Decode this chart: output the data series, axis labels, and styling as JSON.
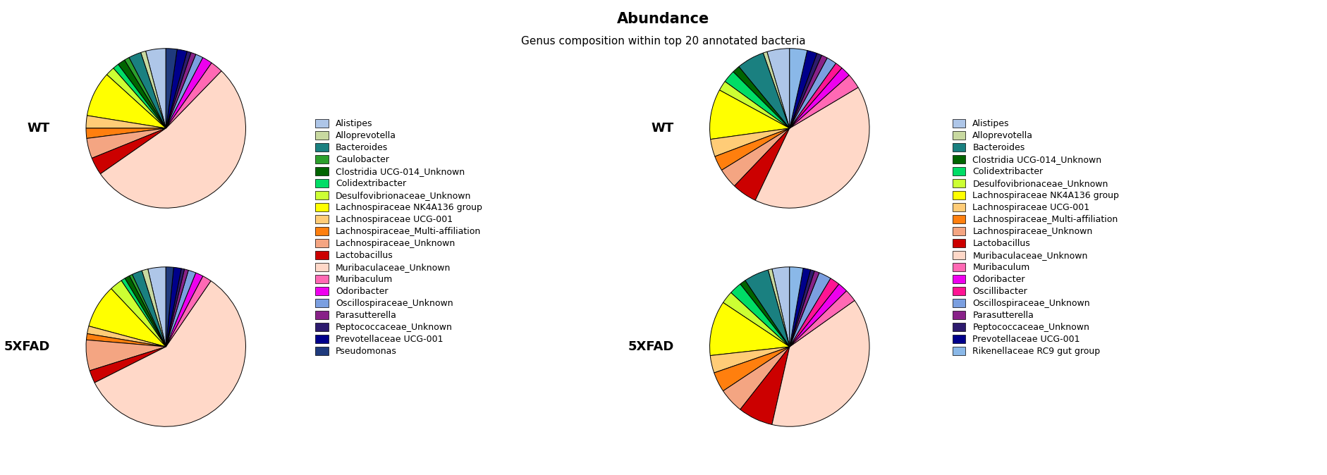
{
  "title": "Abundance",
  "subtitle": "Genus composition within top 20 annotated bacteria",
  "legend1": {
    "labels": [
      "Alistipes",
      "Alloprevotella",
      "Bacteroides",
      "Caulobacter",
      "Clostridia UCG-014_Unknown",
      "Colidextribacter",
      "Desulfovibrionaceae_Unknown",
      "Lachnospiraceae NK4A136 group",
      "Lachnospiraceae UCG-001",
      "Lachnospiraceae_Multi-affiliation",
      "Lachnospiraceae_Unknown",
      "Lactobacillus",
      "Muribaculaceae_Unknown",
      "Muribaculum",
      "Odoribacter",
      "Oscillospiraceae_Unknown",
      "Parasutterella",
      "Peptococcaceae_Unknown",
      "Prevotellaceae UCG-001",
      "Pseudomonas"
    ],
    "colors": [
      "#aec6e8",
      "#c8d9a0",
      "#1a8080",
      "#2ca02c",
      "#006400",
      "#00dd66",
      "#ccff33",
      "#ffff00",
      "#ffcc77",
      "#ff7f0e",
      "#f4a582",
      "#cc0000",
      "#ffd8c8",
      "#ff69b4",
      "#ee00ee",
      "#7b9fe0",
      "#882288",
      "#2d1b6e",
      "#00008b",
      "#1f3a7d"
    ]
  },
  "legend2": {
    "labels": [
      "Alistipes",
      "Alloprevotella",
      "Bacteroides",
      "Clostridia UCG-014_Unknown",
      "Colidextribacter",
      "Desulfovibrionaceae_Unknown",
      "Lachnospiraceae NK4A136 group",
      "Lachnospiraceae UCG-001",
      "Lachnospiraceae_Multi-affiliation",
      "Lachnospiraceae_Unknown",
      "Lactobacillus",
      "Muribaculaceae_Unknown",
      "Muribaculum",
      "Odoribacter",
      "Oscillibacter",
      "Oscillospiraceae_Unknown",
      "Parasutterella",
      "Peptococcaceae_Unknown",
      "Prevotellaceae UCG-001",
      "Rikenellaceae RC9 gut group"
    ],
    "colors": [
      "#aec6e8",
      "#c8d9a0",
      "#1a8080",
      "#006400",
      "#00dd66",
      "#ccff33",
      "#ffff00",
      "#ffcc77",
      "#ff7f0e",
      "#f4a582",
      "#cc0000",
      "#ffd8c8",
      "#ff69b4",
      "#ee00ee",
      "#ff1493",
      "#7b9fe0",
      "#882288",
      "#2d1b6e",
      "#00008b",
      "#8ab8e8"
    ]
  },
  "pie_left_wt": {
    "values": [
      4.0,
      1.0,
      2.5,
      1.0,
      1.5,
      1.2,
      1.8,
      9.0,
      2.5,
      2.0,
      4.0,
      3.5,
      52.0,
      2.5,
      2.0,
      1.5,
      1.0,
      0.8,
      2.0,
      2.2
    ],
    "colors": [
      "#aec6e8",
      "#c8d9a0",
      "#1a8080",
      "#2ca02c",
      "#006400",
      "#00dd66",
      "#ccff33",
      "#ffff00",
      "#ffcc77",
      "#ff7f0e",
      "#f4a582",
      "#cc0000",
      "#ffd8c8",
      "#ff69b4",
      "#ee00ee",
      "#7b9fe0",
      "#882288",
      "#2d1b6e",
      "#00008b",
      "#1f3a7d"
    ]
  },
  "pie_left_5xfad": {
    "values": [
      3.5,
      1.2,
      2.0,
      0.6,
      1.0,
      0.8,
      2.5,
      8.5,
      1.5,
      1.2,
      6.0,
      2.5,
      56.0,
      1.8,
      1.5,
      1.5,
      0.8,
      0.6,
      1.5,
      1.5
    ],
    "colors": [
      "#aec6e8",
      "#c8d9a0",
      "#1a8080",
      "#2ca02c",
      "#006400",
      "#00dd66",
      "#ccff33",
      "#ffff00",
      "#ffcc77",
      "#ff7f0e",
      "#f4a582",
      "#cc0000",
      "#ffd8c8",
      "#ff69b4",
      "#ee00ee",
      "#7b9fe0",
      "#882288",
      "#2d1b6e",
      "#00008b",
      "#1f3a7d"
    ]
  },
  "pie_right_wt": {
    "values": [
      4.5,
      0.8,
      5.5,
      1.5,
      2.5,
      2.0,
      10.0,
      3.5,
      3.0,
      4.0,
      5.0,
      40.0,
      3.0,
      2.0,
      1.5,
      2.0,
      1.2,
      1.0,
      2.0,
      3.5
    ],
    "colors": [
      "#aec6e8",
      "#c8d9a0",
      "#1a8080",
      "#006400",
      "#00dd66",
      "#ccff33",
      "#ffff00",
      "#ffcc77",
      "#ff7f0e",
      "#f4a582",
      "#cc0000",
      "#ffd8c8",
      "#ff69b4",
      "#ee00ee",
      "#ff1493",
      "#7b9fe0",
      "#882288",
      "#2d1b6e",
      "#00008b",
      "#8ab8e8"
    ]
  },
  "pie_right_5xfad": {
    "values": [
      3.5,
      0.8,
      5.0,
      1.2,
      2.5,
      2.5,
      11.0,
      3.5,
      4.0,
      5.0,
      7.0,
      38.0,
      2.5,
      2.0,
      2.0,
      2.5,
      1.0,
      0.8,
      1.5,
      2.7
    ],
    "colors": [
      "#aec6e8",
      "#c8d9a0",
      "#1a8080",
      "#006400",
      "#00dd66",
      "#ccff33",
      "#ffff00",
      "#ffcc77",
      "#ff7f0e",
      "#f4a582",
      "#cc0000",
      "#ffd8c8",
      "#ff69b4",
      "#ee00ee",
      "#ff1493",
      "#7b9fe0",
      "#882288",
      "#2d1b6e",
      "#00008b",
      "#8ab8e8"
    ]
  }
}
